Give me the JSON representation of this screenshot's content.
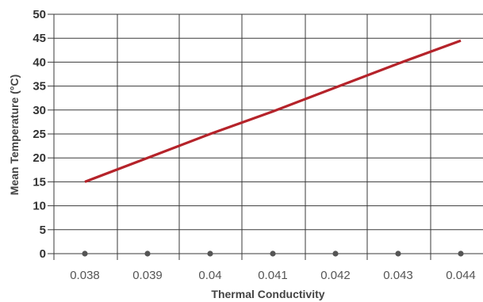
{
  "chart_data": {
    "type": "line",
    "title": "",
    "xlabel": "Thermal Conductivity",
    "ylabel": "Mean Temperature (°C)",
    "x_ticks": [
      "0.038",
      "0.039",
      "0.04",
      "0.041",
      "0.042",
      "0.043",
      "0.044"
    ],
    "y_ticks": [
      "0",
      "5",
      "10",
      "15",
      "20",
      "25",
      "30",
      "35",
      "40",
      "45",
      "50"
    ],
    "ylim": [
      0,
      50
    ],
    "grid": true,
    "legend": "none",
    "series": [
      {
        "x": [
          0.038,
          0.039,
          0.04,
          0.041,
          0.042,
          0.043,
          0.044
        ],
        "y": [
          15,
          20,
          25,
          29.7,
          34.7,
          39.7,
          44.5
        ],
        "color": "#b5232a"
      }
    ],
    "baseline_markers": {
      "x": [
        0.038,
        0.039,
        0.04,
        0.041,
        0.042,
        0.043,
        0.044
      ],
      "y": [
        0,
        0,
        0,
        0,
        0,
        0,
        0
      ],
      "color": "#555555"
    }
  }
}
